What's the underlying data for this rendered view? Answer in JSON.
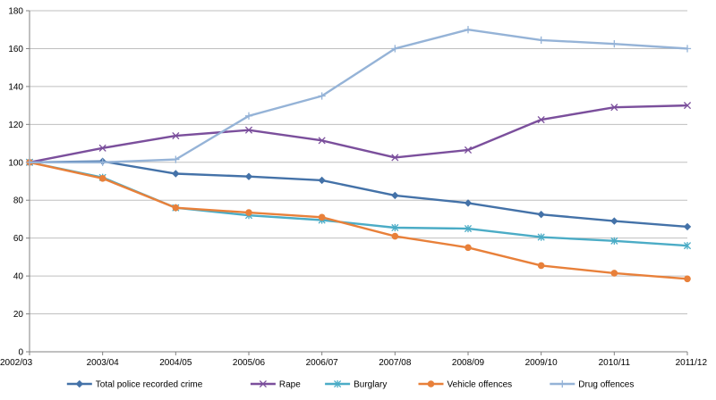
{
  "chart_data": {
    "type": "line",
    "title": "",
    "xlabel": "",
    "ylabel": "",
    "categories": [
      "2002/03",
      "2003/04",
      "2004/05",
      "2005/06",
      "2006/07",
      "2007/08",
      "2008/09",
      "2009/10",
      "2010/11",
      "2011/12"
    ],
    "ylim": [
      0,
      180
    ],
    "yticks": [
      0,
      20,
      40,
      60,
      80,
      100,
      120,
      140,
      160,
      180
    ],
    "grid": "horizontal",
    "legend_position": "bottom",
    "series": [
      {
        "name": "Total police recorded crime",
        "color": "#4472a8",
        "marker": "diamond",
        "values": [
          100,
          100.5,
          94,
          92.5,
          90.5,
          82.5,
          78.5,
          72.5,
          69,
          66
        ]
      },
      {
        "name": "Rape",
        "color": "#7b4f9c",
        "marker": "x",
        "values": [
          100,
          107.5,
          114,
          117,
          111.5,
          102.5,
          106.5,
          122.5,
          129,
          130
        ]
      },
      {
        "name": "Burglary",
        "color": "#4bacc6",
        "marker": "asterisk",
        "values": [
          100,
          92,
          76,
          72,
          69.5,
          65.5,
          65,
          60.5,
          58.5,
          56
        ]
      },
      {
        "name": "Vehicle offences",
        "color": "#e8803a",
        "marker": "circle",
        "values": [
          100,
          91.5,
          76,
          73.5,
          71,
          61,
          55,
          45.5,
          41.5,
          38.5
        ]
      },
      {
        "name": "Drug offences",
        "color": "#95b3d7",
        "marker": "plus",
        "values": [
          100,
          100,
          101.5,
          124.5,
          135,
          160,
          170,
          164.5,
          162.5,
          160
        ]
      }
    ]
  }
}
